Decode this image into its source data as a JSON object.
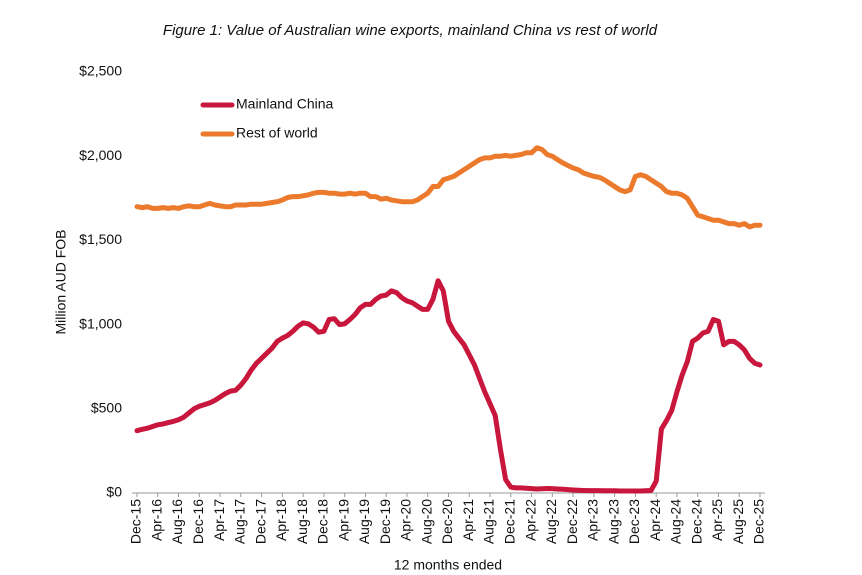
{
  "chart_data": {
    "type": "line",
    "title": "Figure 1: Value of Australian wine exports, mainland China vs rest of world",
    "y_label": "Million AUD FOB",
    "x_label": "12 months ended",
    "categories": [
      "Dec-15",
      null,
      null,
      null,
      "Apr-16",
      null,
      null,
      null,
      "Aug-16",
      null,
      null,
      null,
      "Dec-16",
      null,
      null,
      null,
      "Apr-17",
      null,
      null,
      null,
      "Aug-17",
      null,
      null,
      null,
      "Dec-17",
      null,
      null,
      null,
      "Apr-18",
      null,
      null,
      null,
      "Aug-18",
      null,
      null,
      null,
      "Dec-18",
      null,
      null,
      null,
      "Apr-19",
      null,
      null,
      null,
      "Aug-19",
      null,
      null,
      null,
      "Dec-19",
      null,
      null,
      null,
      "Apr-20",
      null,
      null,
      null,
      "Aug-20",
      null,
      null,
      null,
      "Dec-20",
      null,
      null,
      null,
      "Apr-21",
      null,
      null,
      null,
      "Aug-21",
      null,
      null,
      null,
      "Dec-21",
      null,
      null,
      null,
      "Apr-22",
      null,
      null,
      null,
      "Aug-22",
      null,
      null,
      null,
      "Dec-22",
      null,
      null,
      null,
      "Apr-23",
      null,
      null,
      null,
      "Aug-23",
      null,
      null,
      null,
      "Dec-23",
      null,
      null,
      null,
      "Apr-24",
      null,
      null,
      null,
      "Aug-24",
      null,
      null,
      null,
      "Dec-24",
      null,
      null,
      null,
      "Apr-25",
      null,
      null,
      null,
      "Aug-25",
      null,
      null,
      null,
      "Dec-25"
    ],
    "series": [
      {
        "name": "Mainland China",
        "color": "#c8163c",
        "values": [
          370,
          378,
          385,
          395,
          405,
          410,
          418,
          425,
          435,
          450,
          475,
          500,
          515,
          525,
          535,
          550,
          570,
          590,
          605,
          610,
          640,
          680,
          730,
          770,
          800,
          830,
          860,
          900,
          920,
          935,
          960,
          990,
          1010,
          1005,
          985,
          955,
          960,
          1030,
          1035,
          1000,
          1005,
          1030,
          1060,
          1100,
          1120,
          1120,
          1150,
          1170,
          1175,
          1200,
          1190,
          1160,
          1140,
          1130,
          1110,
          1090,
          1090,
          1150,
          1260,
          1200,
          1020,
          960,
          920,
          880,
          820,
          760,
          680,
          600,
          530,
          460,
          260,
          80,
          35,
          30,
          30,
          28,
          26,
          24,
          25,
          27,
          26,
          24,
          22,
          20,
          18,
          16,
          15,
          14,
          14,
          14,
          13,
          13,
          13,
          12,
          12,
          12,
          12,
          12,
          13,
          15,
          70,
          380,
          430,
          490,
          600,
          700,
          780,
          900,
          920,
          950,
          960,
          1030,
          1020,
          880,
          900,
          900,
          880,
          850,
          800,
          770,
          760
        ]
      },
      {
        "name": "Rest of world",
        "color": "#ec7a2c",
        "values": [
          1700,
          1695,
          1700,
          1690,
          1690,
          1695,
          1690,
          1695,
          1690,
          1700,
          1705,
          1700,
          1700,
          1710,
          1720,
          1710,
          1705,
          1700,
          1700,
          1710,
          1710,
          1710,
          1715,
          1715,
          1715,
          1720,
          1725,
          1730,
          1740,
          1755,
          1760,
          1760,
          1765,
          1770,
          1780,
          1785,
          1785,
          1780,
          1780,
          1775,
          1775,
          1780,
          1775,
          1780,
          1780,
          1760,
          1760,
          1745,
          1750,
          1740,
          1735,
          1730,
          1730,
          1730,
          1740,
          1760,
          1780,
          1820,
          1820,
          1860,
          1870,
          1880,
          1900,
          1920,
          1940,
          1960,
          1980,
          1990,
          1990,
          2000,
          2000,
          2005,
          2000,
          2005,
          2010,
          2020,
          2020,
          2050,
          2040,
          2010,
          2000,
          1980,
          1960,
          1945,
          1930,
          1920,
          1900,
          1890,
          1880,
          1875,
          1860,
          1840,
          1820,
          1800,
          1790,
          1800,
          1880,
          1890,
          1880,
          1860,
          1840,
          1820,
          1790,
          1780,
          1780,
          1770,
          1750,
          1700,
          1650,
          1640,
          1630,
          1620,
          1620,
          1610,
          1600,
          1600,
          1590,
          1600,
          1580,
          1590,
          1590
        ]
      }
    ],
    "ylim": [
      0,
      2500
    ],
    "yticks": [
      {
        "value": 0,
        "label": "$0"
      },
      {
        "value": 500,
        "label": "$500"
      },
      {
        "value": 1000,
        "label": "$1,000"
      },
      {
        "value": 1500,
        "label": "$1,500"
      },
      {
        "value": 2000,
        "label": "$2,000"
      },
      {
        "value": 2500,
        "label": "$2,500"
      }
    ],
    "grid": false
  }
}
